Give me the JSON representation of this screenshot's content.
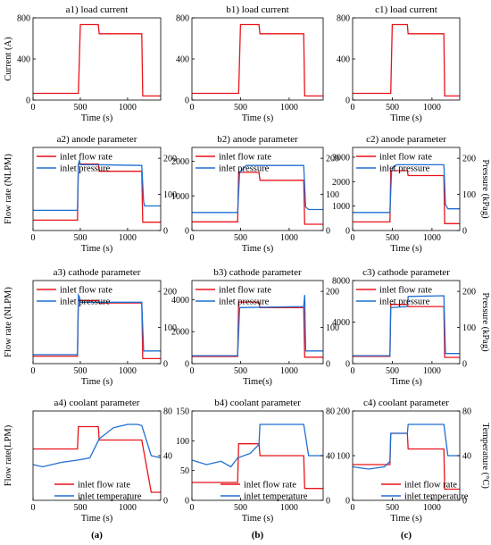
{
  "colors": {
    "series_red": "#e8141a",
    "series_blue": "#1f6fd1",
    "axis": "#000000"
  },
  "column_labels": [
    "(a)",
    "(b)",
    "(c)"
  ],
  "chart_data": [
    {
      "id": "a1",
      "type": "line",
      "title": "a1) load current",
      "xlabel": "Time (s)",
      "ylabel": "Current (A)",
      "xlim": [
        0,
        1350
      ],
      "xticks": [
        0,
        500,
        1000
      ],
      "ylim": [
        0,
        800
      ],
      "yticks": [
        0,
        400,
        800
      ],
      "series": [
        {
          "name": "",
          "color": "#e8141a",
          "axis": "left",
          "x": [
            0,
            480,
            500,
            690,
            700,
            1150,
            1160,
            1350
          ],
          "y": [
            65,
            65,
            735,
            735,
            645,
            645,
            40,
            40
          ]
        }
      ]
    },
    {
      "id": "b1",
      "type": "line",
      "title": "b1) load current",
      "xlabel": "Time (s)",
      "ylabel": "",
      "xlim": [
        0,
        1350
      ],
      "xticks": [
        0,
        500,
        1000
      ],
      "ylim": [
        0,
        800
      ],
      "yticks": [
        0,
        400,
        800
      ],
      "series": [
        {
          "name": "",
          "color": "#e8141a",
          "axis": "left",
          "x": [
            0,
            480,
            500,
            690,
            700,
            1150,
            1160,
            1350
          ],
          "y": [
            65,
            65,
            735,
            735,
            645,
            645,
            40,
            40
          ]
        }
      ]
    },
    {
      "id": "c1",
      "type": "line",
      "title": "c1) load current",
      "xlabel": "Time (s)",
      "ylabel": "",
      "xlim": [
        0,
        1350
      ],
      "xticks": [
        0,
        500,
        1000
      ],
      "ylim": [
        0,
        800
      ],
      "yticks": [
        0,
        400,
        800
      ],
      "series": [
        {
          "name": "",
          "color": "#e8141a",
          "axis": "left",
          "x": [
            0,
            480,
            500,
            690,
            700,
            1150,
            1160,
            1350
          ],
          "y": [
            65,
            65,
            735,
            735,
            645,
            645,
            40,
            40
          ]
        }
      ]
    },
    {
      "id": "a2",
      "type": "line",
      "title": "a2) anode parameter",
      "xlabel": "Time (s)",
      "ylabel": "Flow rate (NLPM)",
      "y2label": "",
      "xlim": [
        0,
        1350
      ],
      "xticks": [
        0,
        500,
        1000
      ],
      "ylim": [
        0,
        1600
      ],
      "yticks": [],
      "y2lim": [
        0,
        230
      ],
      "y2ticks": [
        0,
        100,
        200
      ],
      "legend": [
        "inlet flow rate",
        "inlet pressure"
      ],
      "series": [
        {
          "name": "inlet flow rate",
          "color": "#e8141a",
          "axis": "left",
          "x": [
            0,
            470,
            480,
            690,
            700,
            1150,
            1160,
            1350
          ],
          "y": [
            200,
            200,
            1280,
            1280,
            1140,
            1140,
            160,
            160
          ]
        },
        {
          "name": "inlet pressure",
          "color": "#1f6fd1",
          "axis": "right",
          "x": [
            0,
            470,
            480,
            490,
            500,
            690,
            1150,
            1170,
            1180,
            1350
          ],
          "y": [
            56,
            56,
            180,
            195,
            182,
            182,
            180,
            80,
            68,
            68
          ]
        }
      ]
    },
    {
      "id": "b2",
      "type": "line",
      "title": "b2) anode parameter",
      "xlabel": "Time (s)",
      "ylabel": "",
      "y2label": "",
      "xlim": [
        0,
        1350
      ],
      "xticks": [
        0,
        500,
        1000
      ],
      "ylim": [
        0,
        2400
      ],
      "yticks": [
        0,
        1000,
        2000
      ],
      "y2lim": [
        0,
        230
      ],
      "y2ticks": [
        0,
        100,
        200
      ],
      "legend": [
        "inlet flow rate",
        "inlet pressure"
      ],
      "series": [
        {
          "name": "inlet flow rate",
          "color": "#e8141a",
          "axis": "left",
          "x": [
            0,
            470,
            480,
            690,
            700,
            1150,
            1160,
            1350
          ],
          "y": [
            250,
            250,
            1680,
            1680,
            1450,
            1450,
            180,
            180
          ]
        },
        {
          "name": "inlet pressure",
          "color": "#1f6fd1",
          "axis": "right",
          "x": [
            0,
            470,
            490,
            550,
            560,
            1150,
            1170,
            1200,
            1350
          ],
          "y": [
            50,
            50,
            160,
            178,
            180,
            180,
            65,
            58,
            58
          ]
        }
      ]
    },
    {
      "id": "c2",
      "type": "line",
      "title": "c2) anode parameter",
      "xlabel": "Time (s)",
      "ylabel": "",
      "y2label": "Pressure (kPag)",
      "xlim": [
        0,
        1350
      ],
      "xticks": [
        0,
        500,
        1000
      ],
      "ylim": [
        0,
        3400
      ],
      "yticks": [
        0,
        1000,
        2000,
        3000
      ],
      "y2lim": [
        0,
        230
      ],
      "y2ticks": [
        0,
        100,
        200
      ],
      "legend": [
        "inlet flow rate",
        "inlet pressure"
      ],
      "series": [
        {
          "name": "inlet flow rate",
          "color": "#e8141a",
          "axis": "left",
          "x": [
            0,
            470,
            480,
            690,
            700,
            1150,
            1160,
            1350
          ],
          "y": [
            350,
            350,
            2450,
            2450,
            2250,
            2250,
            280,
            280
          ]
        },
        {
          "name": "inlet pressure",
          "color": "#1f6fd1",
          "axis": "right",
          "x": [
            0,
            470,
            490,
            520,
            560,
            1150,
            1170,
            1200,
            1350
          ],
          "y": [
            50,
            50,
            165,
            178,
            182,
            182,
            72,
            60,
            60
          ]
        }
      ]
    },
    {
      "id": "a3",
      "type": "line",
      "title": "a3) cathode parameter",
      "xlabel": "Time (s)",
      "ylabel": "Flow rate (NLPM)",
      "y2label": "",
      "xlim": [
        0,
        1350
      ],
      "xticks": [
        0,
        500,
        1000
      ],
      "ylim": [
        0,
        1000
      ],
      "yticks": [],
      "y2lim": [
        0,
        230
      ],
      "y2ticks": [
        0,
        100,
        200
      ],
      "legend": [
        "inlet flow rate",
        "inlet pressure"
      ],
      "series": [
        {
          "name": "inlet flow rate",
          "color": "#e8141a",
          "axis": "left",
          "x": [
            0,
            470,
            480,
            690,
            700,
            1150,
            1160,
            1350
          ],
          "y": [
            90,
            90,
            760,
            760,
            730,
            730,
            60,
            60
          ]
        },
        {
          "name": "inlet pressure",
          "color": "#1f6fd1",
          "axis": "right",
          "x": [
            0,
            470,
            480,
            490,
            500,
            690,
            1150,
            1170,
            1350
          ],
          "y": [
            25,
            25,
            190,
            185,
            170,
            170,
            170,
            35,
            35
          ]
        }
      ]
    },
    {
      "id": "b3",
      "type": "line",
      "title": "b3) cathode parameter",
      "xlabel": "Time(s)",
      "ylabel": "",
      "y2label": "",
      "xlim": [
        0,
        1350
      ],
      "xticks": [
        0,
        500,
        1000
      ],
      "ylim": [
        0,
        5200
      ],
      "yticks": [
        0,
        2000,
        4000
      ],
      "y2lim": [
        0,
        230
      ],
      "y2ticks": [
        0,
        100,
        200
      ],
      "legend": [
        "inlet flow rate",
        "inlet pressure"
      ],
      "series": [
        {
          "name": "inlet flow rate",
          "color": "#e8141a",
          "axis": "left",
          "x": [
            0,
            470,
            480,
            690,
            700,
            1150,
            1160,
            1350
          ],
          "y": [
            450,
            450,
            3850,
            3850,
            3500,
            3500,
            400,
            400
          ]
        },
        {
          "name": "inlet pressure",
          "color": "#1f6fd1",
          "axis": "right",
          "x": [
            0,
            470,
            490,
            1150,
            1160,
            1170,
            1350
          ],
          "y": [
            22,
            22,
            155,
            158,
            190,
            35,
            35
          ]
        }
      ]
    },
    {
      "id": "c3",
      "type": "line",
      "title": "c3) cathode parameter",
      "xlabel": "Time (s)",
      "ylabel": "",
      "y2label": "Pressure (kPag)",
      "xlim": [
        0,
        1350
      ],
      "xticks": [
        0,
        500,
        1000
      ],
      "ylim": [
        0,
        8000
      ],
      "yticks": [
        0,
        4000,
        8000
      ],
      "y2lim": [
        0,
        230
      ],
      "y2ticks": [
        0,
        100,
        200
      ],
      "legend": [
        "inlet flow rate",
        "inlet pressure"
      ],
      "series": [
        {
          "name": "inlet flow rate",
          "color": "#e8141a",
          "axis": "left",
          "x": [
            0,
            470,
            480,
            690,
            700,
            1150,
            1160,
            1350
          ],
          "y": [
            700,
            700,
            5700,
            5700,
            5500,
            5500,
            600,
            600
          ]
        },
        {
          "name": "inlet pressure",
          "color": "#1f6fd1",
          "axis": "right",
          "x": [
            0,
            470,
            480,
            690,
            700,
            1150,
            1170,
            1350
          ],
          "y": [
            22,
            22,
            155,
            158,
            186,
            188,
            28,
            28
          ]
        }
      ]
    },
    {
      "id": "a4",
      "type": "line",
      "title": "a4) coolant parameter",
      "xlabel": "Time (s)",
      "ylabel": "Flow rate(LPM)",
      "y2label": "",
      "xlim": [
        0,
        1350
      ],
      "xticks": [
        0,
        500,
        1000
      ],
      "ylim": [
        0,
        20
      ],
      "yticks": [],
      "y2lim": [
        0,
        80
      ],
      "y2ticks": [
        0,
        40,
        80
      ],
      "legend": [
        "inlet flow rate",
        "inlet temperature"
      ],
      "series": [
        {
          "name": "inlet flow rate",
          "color": "#e8141a",
          "axis": "left",
          "x": [
            0,
            470,
            480,
            690,
            700,
            1150,
            1250,
            1350
          ],
          "y": [
            11.5,
            11.5,
            16.5,
            16.5,
            13.5,
            13.5,
            1.8,
            1.8
          ]
        },
        {
          "name": "inlet temperature",
          "color": "#1f6fd1",
          "axis": "right",
          "x": [
            0,
            100,
            300,
            470,
            600,
            700,
            850,
            1000,
            1100,
            1150,
            1250,
            1350
          ],
          "y": [
            32,
            30,
            34,
            36,
            38,
            55,
            65,
            68,
            68,
            67,
            40,
            38
          ]
        }
      ]
    },
    {
      "id": "b4",
      "type": "line",
      "title": "b4) coolant parameter",
      "xlabel": "Time (s)",
      "ylabel": "",
      "y2label": "",
      "xlim": [
        0,
        1350
      ],
      "xticks": [
        0,
        500,
        1000
      ],
      "ylim": [
        0,
        150
      ],
      "yticks": [
        0,
        50,
        100,
        150
      ],
      "y2lim": [
        0,
        80
      ],
      "y2ticks": [
        0,
        40,
        80
      ],
      "legend": [
        "inlet flow rate",
        "inlet temperature"
      ],
      "series": [
        {
          "name": "inlet flow rate",
          "color": "#e8141a",
          "axis": "left",
          "x": [
            0,
            470,
            480,
            690,
            700,
            1150,
            1160,
            1350
          ],
          "y": [
            30,
            30,
            95,
            95,
            75,
            75,
            20,
            20
          ]
        },
        {
          "name": "inlet temperature",
          "color": "#1f6fd1",
          "axis": "right",
          "x": [
            0,
            150,
            300,
            400,
            470,
            600,
            690,
            700,
            1150,
            1200,
            1350
          ],
          "y": [
            36,
            32,
            35,
            30,
            38,
            42,
            50,
            68,
            68,
            40,
            40
          ]
        }
      ]
    },
    {
      "id": "c4",
      "type": "line",
      "title": "c4) coolant parameter",
      "xlabel": "Time (s)",
      "ylabel": "",
      "y2label": "Temperature (°C)",
      "xlim": [
        0,
        1350
      ],
      "xticks": [
        0,
        500,
        1000
      ],
      "ylim": [
        0,
        200
      ],
      "yticks": [
        0,
        100,
        200
      ],
      "y2lim": [
        0,
        80
      ],
      "y2ticks": [
        0,
        40,
        80
      ],
      "legend": [
        "inlet flow rate",
        "inlet temperature"
      ],
      "series": [
        {
          "name": "inlet flow rate",
          "color": "#e8141a",
          "axis": "left",
          "x": [
            0,
            470,
            480,
            690,
            700,
            1150,
            1160,
            1350
          ],
          "y": [
            80,
            80,
            150,
            150,
            115,
            115,
            25,
            25
          ]
        },
        {
          "name": "inlet temperature",
          "color": "#1f6fd1",
          "axis": "right",
          "x": [
            0,
            200,
            400,
            470,
            480,
            690,
            700,
            1150,
            1200,
            1350
          ],
          "y": [
            30,
            28,
            30,
            35,
            60,
            60,
            68,
            68,
            40,
            40
          ]
        }
      ]
    }
  ]
}
